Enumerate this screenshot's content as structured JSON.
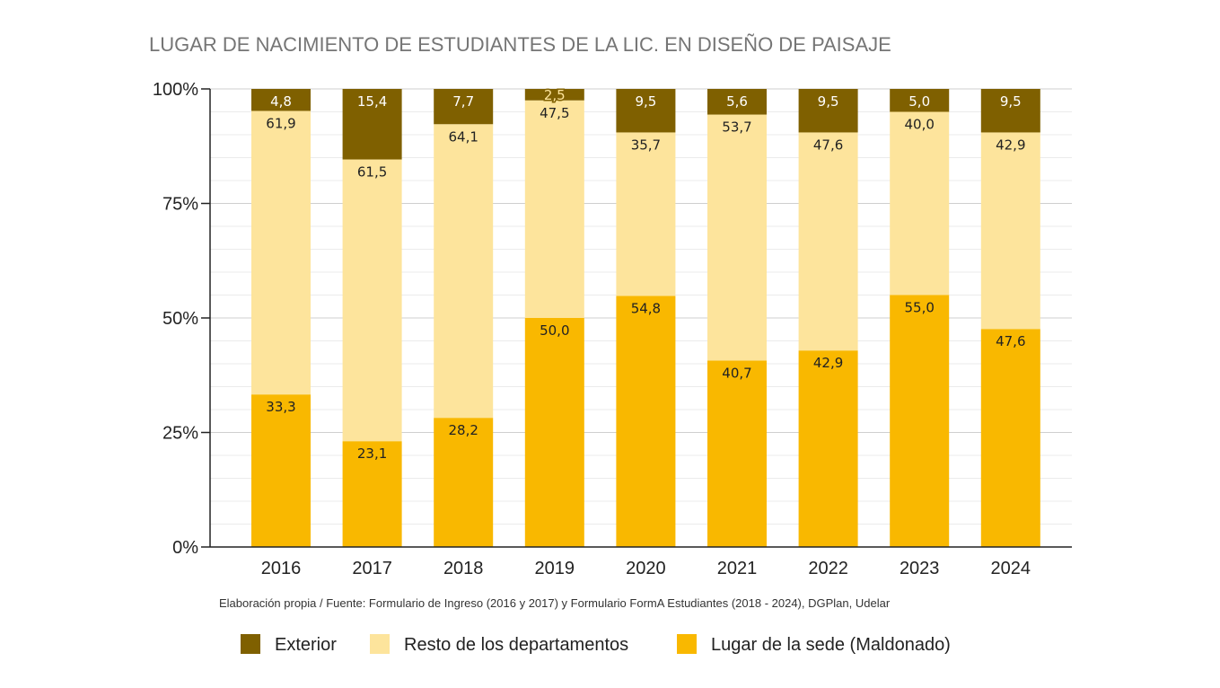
{
  "chart_data": {
    "type": "bar",
    "stacked": true,
    "title": "LUGAR DE NACIMIENTO DE ESTUDIANTES DE LA LIC. EN DISEÑO DE PAISAJE",
    "categories": [
      "2016",
      "2017",
      "2018",
      "2019",
      "2020",
      "2021",
      "2022",
      "2023",
      "2024"
    ],
    "series": [
      {
        "name": "Lugar de la sede (Maldonado)",
        "color": "#F9B800",
        "values": [
          33.3,
          23.1,
          28.2,
          50.0,
          54.8,
          40.7,
          42.9,
          55.0,
          47.6
        ],
        "labels": [
          "33,3",
          "23,1",
          "28,2",
          "50,0",
          "54,8",
          "40,7",
          "42,9",
          "55,0",
          "47,6"
        ]
      },
      {
        "name": "Resto de los departamentos",
        "color": "#FDE49C",
        "values": [
          61.9,
          61.5,
          64.1,
          47.5,
          35.7,
          53.7,
          47.6,
          40.0,
          42.9
        ],
        "labels": [
          "61,9",
          "61,5",
          "64,1",
          "47,5",
          "35,7",
          "53,7",
          "47,6",
          "40,0",
          "42,9"
        ]
      },
      {
        "name": "Exterior",
        "color": "#7F6000",
        "values": [
          4.8,
          15.4,
          7.7,
          2.5,
          9.5,
          5.6,
          9.5,
          5.0,
          9.5
        ],
        "labels": [
          "4,8",
          "15,4",
          "7,7",
          "2,5",
          "9,5",
          "5,6",
          "9,5",
          "5,0",
          "9,5"
        ]
      }
    ],
    "y_ticks": [
      "0%",
      "25%",
      "50%",
      "75%",
      "100%"
    ],
    "ylim": [
      0,
      100
    ],
    "grid": true,
    "legend_position": "bottom",
    "legend_order": [
      "Exterior",
      "Resto de los departamentos",
      "Lugar de la sede (Maldonado)"
    ],
    "source_note": "Elaboración propia / Fuente: Formulario de Ingreso (2016 y 2017) y Formulario FormA Estudiantes (2018 - 2024), DGPlan, Udelar"
  }
}
